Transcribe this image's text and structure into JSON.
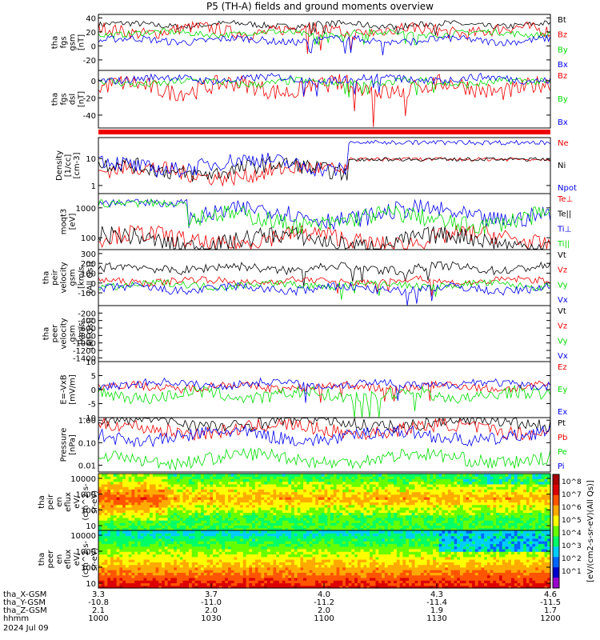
{
  "title": "P5 (TH-A) fields and ground moments overview",
  "colors": {
    "black": "#000000",
    "red": "#ee0000",
    "green": "#00dd00",
    "blue": "#0000ee"
  },
  "chart_data": [
    {
      "type": "line",
      "panel": "fgs_gsm",
      "ylabel": [
        "tha",
        "fgs",
        "gsm",
        "[nT]"
      ],
      "ylim": [
        -35,
        45
      ],
      "yticks": [
        -20,
        0,
        20,
        40
      ],
      "yticklabels": [
        "-20",
        "0",
        "20",
        "40"
      ],
      "series": [
        {
          "name": "Bt",
          "color": "black",
          "level": 30,
          "amp": 6
        },
        {
          "name": "Bz",
          "color": "red",
          "level": 22,
          "amp": 12
        },
        {
          "name": "By",
          "color": "green",
          "level": 18,
          "amp": 6
        },
        {
          "name": "Bx",
          "color": "blue",
          "level": 8,
          "amp": 7
        }
      ]
    },
    {
      "type": "line",
      "panel": "fgs_dsl",
      "ylabel": [
        "tha",
        "fgs",
        "dsl",
        "[nT]"
      ],
      "ylim": [
        -55,
        12
      ],
      "yticks": [
        -40,
        -20,
        0
      ],
      "yticklabels": [
        "-40",
        "-20",
        "0"
      ],
      "series": [
        {
          "name": "Bz",
          "color": "red",
          "level": -8,
          "amp": 14
        },
        {
          "name": "By",
          "color": "green",
          "level": -2,
          "amp": 6
        },
        {
          "name": "Bx",
          "color": "blue",
          "level": 2,
          "amp": 6
        }
      ]
    },
    {
      "type": "line",
      "panel": "density",
      "ylabel": [
        "Density",
        "[1/cc]",
        "[cm-3]"
      ],
      "ylim": [
        0.5,
        60
      ],
      "log": true,
      "yticks": [
        1,
        10
      ],
      "yticklabels": [
        "1",
        "10"
      ],
      "series": [
        {
          "name": "Ne",
          "color": "red",
          "level": 3,
          "amp": 2
        },
        {
          "name": "Ni",
          "color": "black",
          "level": 4,
          "amp": 2
        },
        {
          "name": "Npot",
          "color": "blue",
          "level": 6,
          "amp": 3
        }
      ]
    },
    {
      "type": "line",
      "panel": "temperature",
      "ylabel": [
        "moqt3",
        "[eV]"
      ],
      "ylim": [
        40,
        3000
      ],
      "log": true,
      "yticks": [
        100,
        1000
      ],
      "yticklabels": [
        "100",
        "1000"
      ],
      "series": [
        {
          "name": "Te⊥",
          "color": "red",
          "level": 90,
          "amp": 40
        },
        {
          "name": "Te||",
          "color": "black",
          "level": 80,
          "amp": 40
        },
        {
          "name": "Ti⊥",
          "color": "blue",
          "level": 600,
          "amp": 300
        },
        {
          "name": "Ti||",
          "color": "green",
          "level": 400,
          "amp": 300
        }
      ]
    },
    {
      "type": "line",
      "panel": "peir_velocity",
      "ylabel": [
        "tha",
        "peir",
        "velocity",
        "gsm",
        "[km/s",
        "(All Qs)]"
      ],
      "ylim": [
        -230,
        340
      ],
      "yticks": [
        -100,
        0,
        100,
        200,
        300
      ],
      "yticklabels": [
        "-100",
        "0",
        "100",
        "200",
        "300"
      ],
      "series": [
        {
          "name": "Vt",
          "color": "black",
          "level": 150,
          "amp": 60
        },
        {
          "name": "Vz",
          "color": "red",
          "level": 20,
          "amp": 50
        },
        {
          "name": "Vy",
          "color": "green",
          "level": -20,
          "amp": 50
        },
        {
          "name": "Vx",
          "color": "blue",
          "level": -60,
          "amp": 60
        }
      ]
    },
    {
      "type": "line",
      "panel": "peer_velocity",
      "ylabel": [
        "tha",
        "peer",
        "velocity",
        "gsm",
        "[km/s",
        "(All Qs)]"
      ],
      "ylim": [
        -1500,
        0
      ],
      "yticks": [
        -200,
        -400,
        -600,
        -800,
        -1000,
        -1200,
        -1400
      ],
      "yticklabels": [
        "-200",
        "-400",
        "-600",
        "-800",
        "-1000",
        "-1200",
        "-1400"
      ],
      "series": [
        {
          "name": "Vt",
          "color": "black"
        },
        {
          "name": "Vz",
          "color": "red"
        },
        {
          "name": "Vy",
          "color": "green"
        },
        {
          "name": "Vx",
          "color": "blue"
        }
      ]
    },
    {
      "type": "line",
      "panel": "efield",
      "ylabel": [
        "E=-VxB",
        "[mV/m]"
      ],
      "ylim": [
        -10,
        10
      ],
      "yticks": [
        -10,
        -5,
        0,
        5,
        10
      ],
      "yticklabels": [
        "-10",
        "-5",
        "0",
        "5",
        "10"
      ],
      "series": [
        {
          "name": "Ez",
          "color": "red",
          "level": 1,
          "amp": 2
        },
        {
          "name": "Ey",
          "color": "green",
          "level": -2,
          "amp": 3
        },
        {
          "name": "Ex",
          "color": "blue",
          "level": 2,
          "amp": 2
        }
      ]
    },
    {
      "type": "line",
      "panel": "pressure",
      "ylabel": [
        "Pressure",
        "[nPa]"
      ],
      "ylim": [
        0.005,
        1.3
      ],
      "log": true,
      "yticks": [
        0.01,
        0.1,
        1
      ],
      "yticklabels": [
        "0.01",
        "0.10",
        "1.00"
      ],
      "series": [
        {
          "name": "Pt",
          "color": "black",
          "level": 0.8,
          "amp": 0.2
        },
        {
          "name": "Pb",
          "color": "red",
          "level": 0.4,
          "amp": 0.2
        },
        {
          "name": "Pe",
          "color": "green",
          "level": 0.02,
          "amp": 0.01
        },
        {
          "name": "Pi",
          "color": "blue",
          "level": 0.2,
          "amp": 0.15
        }
      ]
    },
    {
      "type": "heatmap",
      "panel": "peir_eflux",
      "ylabel": [
        "tha",
        "peir",
        "en",
        "eflux",
        "eV/",
        "(cm^2-s-",
        "sr-eV)"
      ],
      "ylim": [
        5,
        20000
      ],
      "log": true,
      "yticks": [
        10,
        100,
        1000,
        10000
      ],
      "yticklabels": [
        "10",
        "100",
        "1000",
        "10000"
      ]
    },
    {
      "type": "heatmap",
      "panel": "peer_eflux",
      "ylabel": [
        "tha",
        "peer",
        "en",
        "eflux",
        "eV/",
        "(cm^2-s-",
        "sr-eV)"
      ],
      "ylim": [
        5,
        20000
      ],
      "log": true,
      "yticks": [
        10,
        100,
        1000,
        10000
      ],
      "yticklabels": [
        "10",
        "100",
        "1000",
        "10000"
      ]
    }
  ],
  "colorbar": {
    "labels": [
      "10^8",
      "10^7",
      "10^6",
      "10^5",
      "10^4",
      "10^3",
      "10^2",
      "10^1"
    ],
    "title": "[eV/(cm2-s-sr-eV)(All Qs)]"
  },
  "xaxis": {
    "rows": [
      {
        "name": "tha_X-GSM",
        "values": [
          "3.3",
          "3.7",
          "4.0",
          "4.3",
          "4.6"
        ]
      },
      {
        "name": "tha_Y-GSM",
        "values": [
          "-10.8",
          "-11.0",
          "-11.2",
          "-11.4",
          "-11.5"
        ]
      },
      {
        "name": "tha_Z-GSM",
        "values": [
          "2.1",
          "2.0",
          "2.0",
          "1.9",
          "1.7"
        ]
      },
      {
        "name": "hhmm",
        "values": [
          "1000",
          "1030",
          "1100",
          "1130",
          "1200"
        ]
      }
    ],
    "date": "2024 Jul 09"
  }
}
